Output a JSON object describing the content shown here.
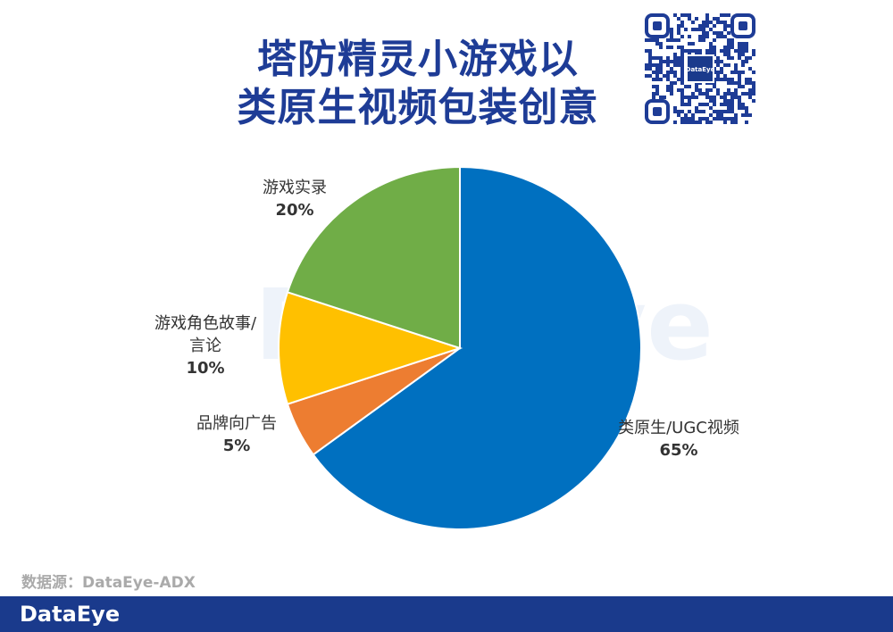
{
  "chart_data": {
    "type": "pie",
    "title": [
      "塔防精灵小游戏以",
      "类原生视频包装创意"
    ],
    "categories": [
      "类原生/UGC视频",
      "品牌向广告",
      "游戏角色故事/言论",
      "游戏实录"
    ],
    "values": [
      65,
      5,
      10,
      20
    ],
    "value_labels": [
      "65%",
      "5%",
      "10%",
      "20%"
    ],
    "colors": [
      "#0070c0",
      "#ed7d31",
      "#ffc000",
      "#70ad47"
    ],
    "source": "数据源：DataEye-ADX",
    "brand": "DataEye"
  }
}
